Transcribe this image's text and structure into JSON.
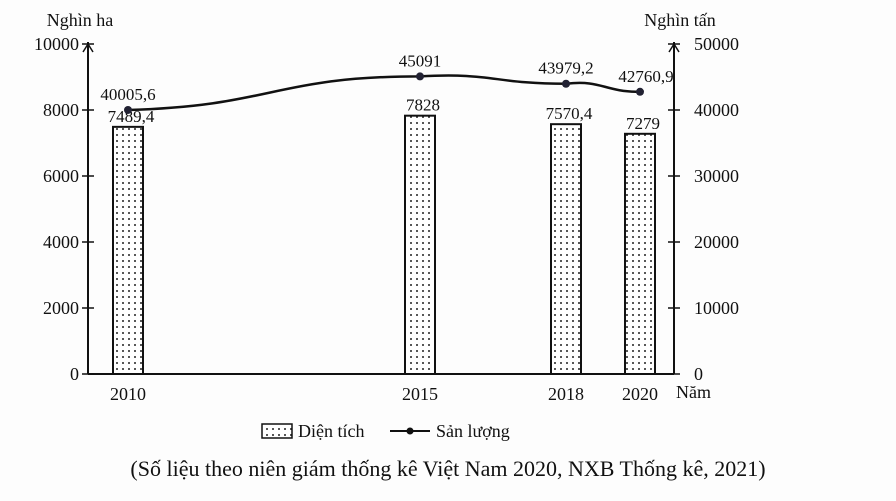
{
  "chart_data": {
    "type": "bar+line",
    "categories": [
      "2010",
      "2015",
      "2018",
      "2020"
    ],
    "xlabel": "Năm",
    "y_left": {
      "label": "Nghìn ha",
      "range": [
        0,
        10000
      ],
      "ticks": [
        0,
        2000,
        4000,
        6000,
        8000,
        10000
      ]
    },
    "y_right": {
      "label": "Nghìn tấn",
      "range": [
        0,
        50000
      ],
      "ticks": [
        0,
        10000,
        20000,
        30000,
        40000,
        50000
      ]
    },
    "series": [
      {
        "name": "Diện tích",
        "type": "bar",
        "axis": "left",
        "values": [
          7489.4,
          7828,
          7570.4,
          7279
        ],
        "labels": [
          "7489,4",
          "7828",
          "7570,4",
          "7279"
        ],
        "pattern": "dotted"
      },
      {
        "name": "Sản lượng",
        "type": "line",
        "axis": "right",
        "values": [
          40005.6,
          45091,
          43979.2,
          42760.9
        ],
        "labels": [
          "40005,6",
          "45091",
          "43979,2",
          "42760,9"
        ],
        "color": "#111111"
      }
    ],
    "grid": false,
    "legend": "bottom"
  },
  "caption": "(Số liệu theo niên giám thống kê Việt Nam 2020, NXB Thống kê, 2021)"
}
